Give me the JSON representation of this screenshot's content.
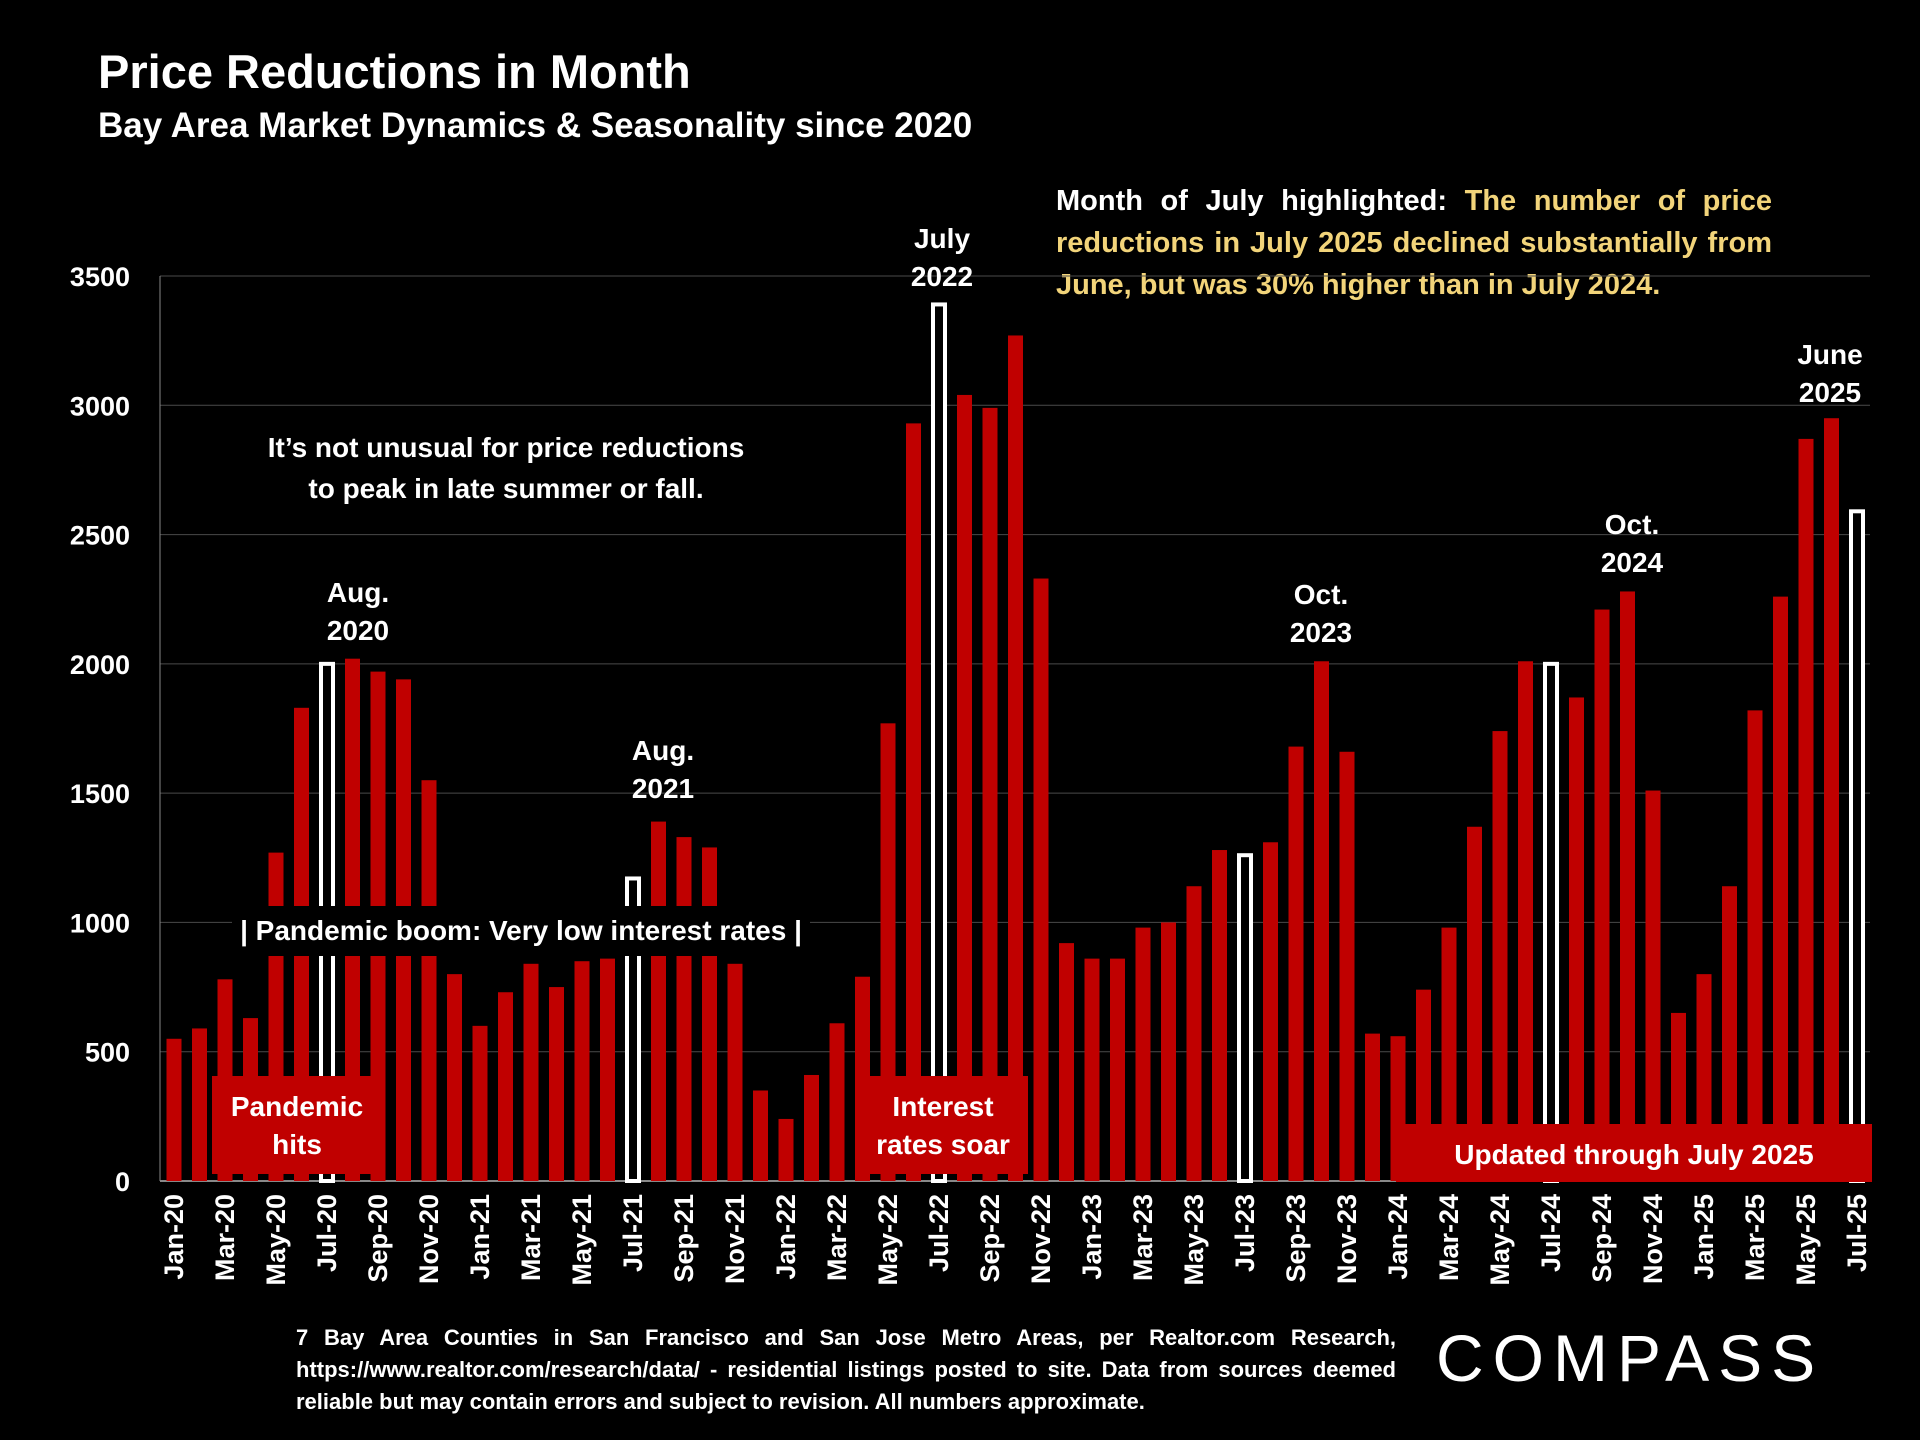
{
  "title": "Price Reductions in Month",
  "subtitle": "Bay Area Market Dynamics & Seasonality since 2020",
  "note": {
    "lead": "Month of July highlighted:",
    "highlight": "The number of price reductions in July 2025 declined substantially from June, but was 30% higher than in July 2024."
  },
  "annotations": {
    "summer_peak_1": "It’s not unusual for price reductions",
    "summer_peak_2": "to peak in late summer or fall.",
    "pandemic_boom": "| Pandemic boom: Very low interest rates |",
    "aug2020_1": "Aug.",
    "aug2020_2": "2020",
    "aug2021_1": "Aug.",
    "aug2021_2": "2021",
    "jul2022_1": "July",
    "jul2022_2": "2022",
    "oct2023_1": "Oct.",
    "oct2023_2": "2023",
    "oct2024_1": "Oct.",
    "oct2024_2": "2024",
    "jun2025_1": "June",
    "jun2025_2": "2025",
    "pandemic_hits_1": "Pandemic",
    "pandemic_hits_2": "hits",
    "rates_soar_1": "Interest",
    "rates_soar_2": "rates soar",
    "updated": "Updated through July 2025"
  },
  "source": "7 Bay Area Counties in San Francisco and San Jose Metro Areas, per Realtor.com Research, https://www.realtor.com/research/data/ - residential listings posted to site. Data from sources deemed reliable but may contain errors and subject to revision. All numbers approximate.",
  "logo": "COMPASS",
  "colors": {
    "bar": "#c00000",
    "highlight_outline": "#ffffff",
    "highlight_fill": "#000000",
    "note_highlight": "#f2d47a",
    "label_box": "#c00000"
  },
  "chart_data": {
    "type": "bar",
    "title": "Price Reductions in Month",
    "subtitle": "Bay Area Market Dynamics & Seasonality since 2020",
    "ylim": [
      0,
      3500
    ],
    "yticks": [
      0,
      500,
      1000,
      1500,
      2000,
      2500,
      3000,
      3500
    ],
    "grid": true,
    "categories": [
      "Jan-20",
      "Feb-20",
      "Mar-20",
      "Apr-20",
      "May-20",
      "Jun-20",
      "Jul-20",
      "Aug-20",
      "Sep-20",
      "Oct-20",
      "Nov-20",
      "Dec-20",
      "Jan-21",
      "Feb-21",
      "Mar-21",
      "Apr-21",
      "May-21",
      "Jun-21",
      "Jul-21",
      "Aug-21",
      "Sep-21",
      "Oct-21",
      "Nov-21",
      "Dec-21",
      "Jan-22",
      "Feb-22",
      "Mar-22",
      "Apr-22",
      "May-22",
      "Jun-22",
      "Jul-22",
      "Aug-22",
      "Sep-22",
      "Oct-22",
      "Nov-22",
      "Dec-22",
      "Jan-23",
      "Feb-23",
      "Mar-23",
      "Apr-23",
      "May-23",
      "Jun-23",
      "Jul-23",
      "Aug-23",
      "Sep-23",
      "Oct-23",
      "Nov-23",
      "Dec-23",
      "Jan-24",
      "Feb-24",
      "Mar-24",
      "Apr-24",
      "May-24",
      "Jun-24",
      "Jul-24",
      "Aug-24",
      "Sep-24",
      "Oct-24",
      "Nov-24",
      "Dec-24",
      "Jan-25",
      "Feb-25",
      "Mar-25",
      "Apr-25",
      "May-25",
      "Jun-25",
      "Jul-25"
    ],
    "tick_labels": [
      "Jan-20",
      "Mar-20",
      "May-20",
      "Jul-20",
      "Sep-20",
      "Nov-20",
      "Jan-21",
      "Mar-21",
      "May-21",
      "Jul-21",
      "Sep-21",
      "Nov-21",
      "Jan-22",
      "Mar-22",
      "May-22",
      "Jul-22",
      "Sep-22",
      "Nov-22",
      "Jan-23",
      "Mar-23",
      "May-23",
      "Jul-23",
      "Sep-23",
      "Nov-23",
      "Jan-24",
      "Mar-24",
      "May-24",
      "Jul-24",
      "Sep-24",
      "Nov-24",
      "Jan-25",
      "Mar-25",
      "May-25",
      "Jul-25"
    ],
    "values": [
      550,
      590,
      780,
      630,
      1270,
      1830,
      2000,
      2020,
      1970,
      1940,
      1550,
      800,
      600,
      730,
      840,
      750,
      850,
      860,
      1170,
      1390,
      1330,
      1290,
      840,
      350,
      240,
      410,
      610,
      790,
      1770,
      2930,
      3390,
      3040,
      2990,
      3270,
      2330,
      920,
      860,
      860,
      980,
      1000,
      1140,
      1280,
      1260,
      1310,
      1680,
      2010,
      1660,
      570,
      560,
      740,
      980,
      1370,
      1740,
      2010,
      2000,
      1870,
      2210,
      2280,
      1510,
      650,
      800,
      1140,
      1820,
      2260,
      2870,
      2950,
      2590
    ],
    "highlighted": [
      "Jul-20",
      "Jul-21",
      "Jul-22",
      "Jul-23",
      "Jul-24",
      "Jul-25"
    ]
  }
}
